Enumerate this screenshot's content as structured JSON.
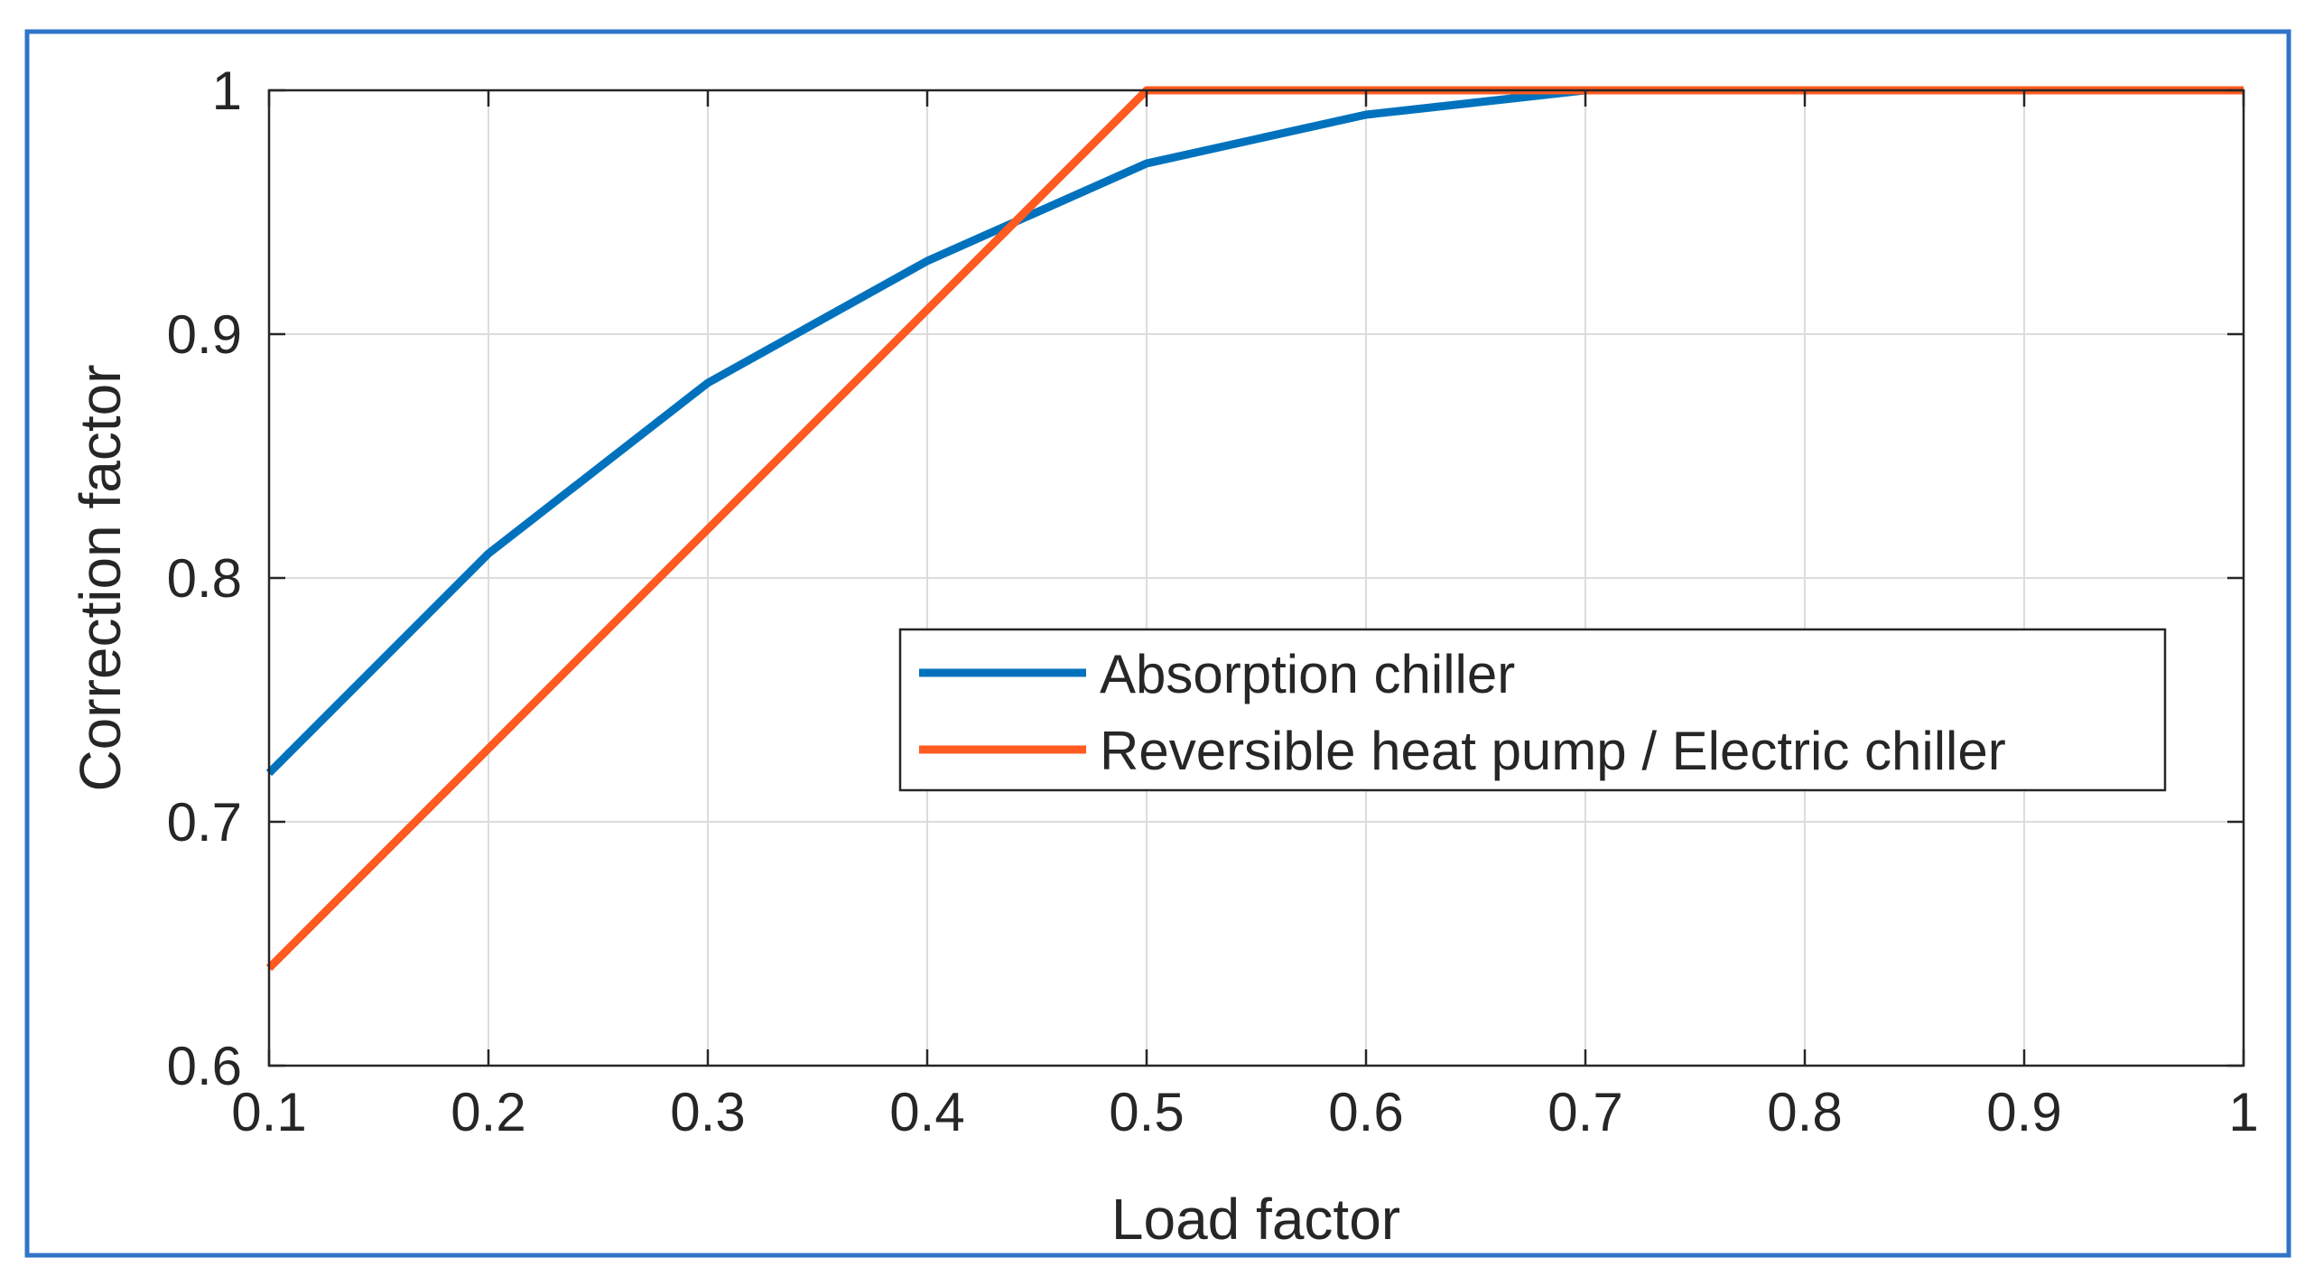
{
  "chart_data": {
    "type": "line",
    "title": "",
    "xlabel": "Load factor",
    "ylabel": "Correction factor",
    "xlim": [
      0.1,
      1
    ],
    "ylim": [
      0.6,
      1
    ],
    "grid": true,
    "legend_position": "center-right",
    "x_ticks": [
      "0.1",
      "0.2",
      "0.3",
      "0.4",
      "0.5",
      "0.6",
      "0.7",
      "0.8",
      "0.9",
      "1"
    ],
    "y_ticks": [
      "0.6",
      "0.7",
      "0.8",
      "0.9",
      "1"
    ],
    "series": [
      {
        "name": "Absorption chiller",
        "color": "#0072BD",
        "x": [
          0.1,
          0.2,
          0.3,
          0.4,
          0.5,
          0.6,
          0.7,
          0.8,
          0.9,
          1.0
        ],
        "y": [
          0.72,
          0.81,
          0.88,
          0.93,
          0.97,
          0.99,
          1.0,
          1.0,
          1.0,
          1.0
        ]
      },
      {
        "name": "Reversible heat pump / Electric chiller",
        "color": "#FF5A1F",
        "x": [
          0.1,
          0.5,
          0.6,
          0.7,
          0.8,
          0.9,
          1.0
        ],
        "y": [
          0.64,
          1.0,
          1.0,
          1.0,
          1.0,
          1.0,
          1.0
        ]
      }
    ]
  },
  "colors": {
    "frame_border": "#2E75C8",
    "grid": "#DCDCDC",
    "axis": "#262626"
  }
}
